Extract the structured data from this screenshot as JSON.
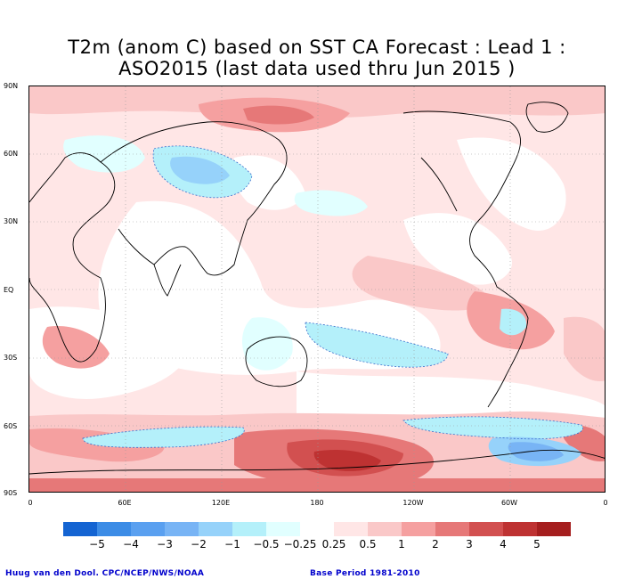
{
  "title_line1": "T2m (anom C) based on SST CA Forecast : Lead 1 :",
  "title_line2": "ASO2015 (last data used thru Jun 2015 )",
  "lat_labels": [
    "90N",
    "60N",
    "30N",
    "EQ",
    "30S",
    "60S",
    "90S"
  ],
  "lon_labels": [
    "0",
    "60E",
    "120E",
    "180",
    "120W",
    "60W",
    "0"
  ],
  "colorbar": {
    "colors": [
      "#1464d2",
      "#3c8ce6",
      "#5aa0f0",
      "#78b4f5",
      "#96d2fa",
      "#b4f0fa",
      "#e1ffff",
      "#ffffff",
      "#ffe6e6",
      "#fac8c8",
      "#f5a0a0",
      "#e67878",
      "#d25050",
      "#be3232",
      "#a51e1e"
    ],
    "labels": [
      "−5",
      "−4",
      "−3",
      "−2",
      "−1",
      "−0.5",
      "−0.25",
      "0.25",
      "0.5",
      "1",
      "2",
      "3",
      "4",
      "5"
    ]
  },
  "footer_left": "Huug van den Dool. CPC/NCEP/NWS/NOAA",
  "footer_right": "Base Period 1981-2010"
}
